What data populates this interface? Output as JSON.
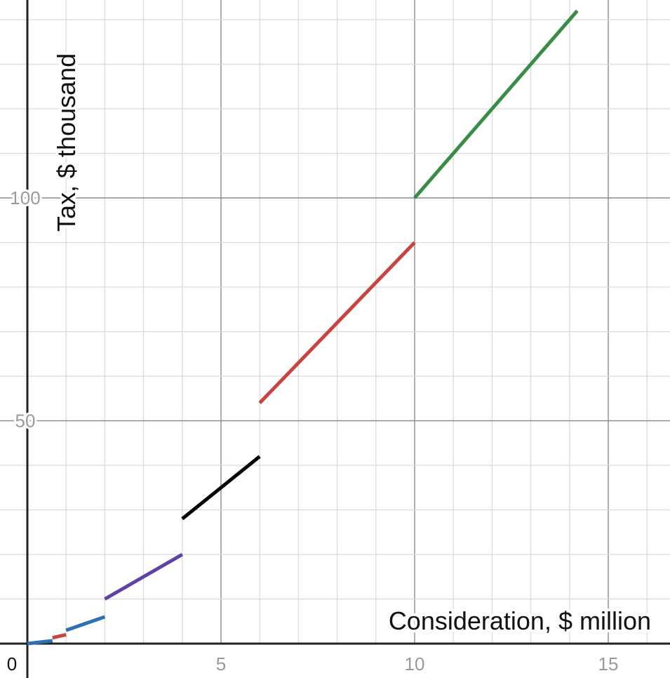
{
  "chart_data": {
    "type": "line",
    "title": "",
    "xlabel": "Consideration, $ million",
    "ylabel": "Tax, $ thousand",
    "xlim": [
      0,
      16.6
    ],
    "ylim": [
      0,
      143.5
    ],
    "x_major_step": 5,
    "x_minor_step": 1,
    "y_major_step": 50,
    "y_minor_step": 10,
    "x_ticks": [
      {
        "value": 5,
        "label": "5"
      },
      {
        "value": 10,
        "label": "10"
      },
      {
        "value": 15,
        "label": "15"
      }
    ],
    "y_ticks": [
      {
        "value": 50,
        "label": "50"
      },
      {
        "value": 100,
        "label": "100"
      }
    ],
    "origin_label": "0",
    "grid": true,
    "segments": [
      {
        "color": "#2d70b3",
        "x": [
          0,
          0.65
        ],
        "y": [
          0,
          0.65
        ]
      },
      {
        "color": "#c74440",
        "x": [
          0.65,
          1.0
        ],
        "y": [
          1.3,
          2.0
        ]
      },
      {
        "color": "#2d70b3",
        "x": [
          1.0,
          2.0
        ],
        "y": [
          3.0,
          6.0
        ]
      },
      {
        "color": "#6042a6",
        "x": [
          2.0,
          4.0
        ],
        "y": [
          10.0,
          20.0
        ]
      },
      {
        "color": "#000000",
        "x": [
          4.0,
          6.0
        ],
        "y": [
          28.0,
          42.0
        ]
      },
      {
        "color": "#c74440",
        "x": [
          6.0,
          10.0
        ],
        "y": [
          54.0,
          90.0
        ]
      },
      {
        "color": "#388c46",
        "x": [
          10.0,
          14.2
        ],
        "y": [
          100.0,
          142.0
        ]
      }
    ]
  }
}
